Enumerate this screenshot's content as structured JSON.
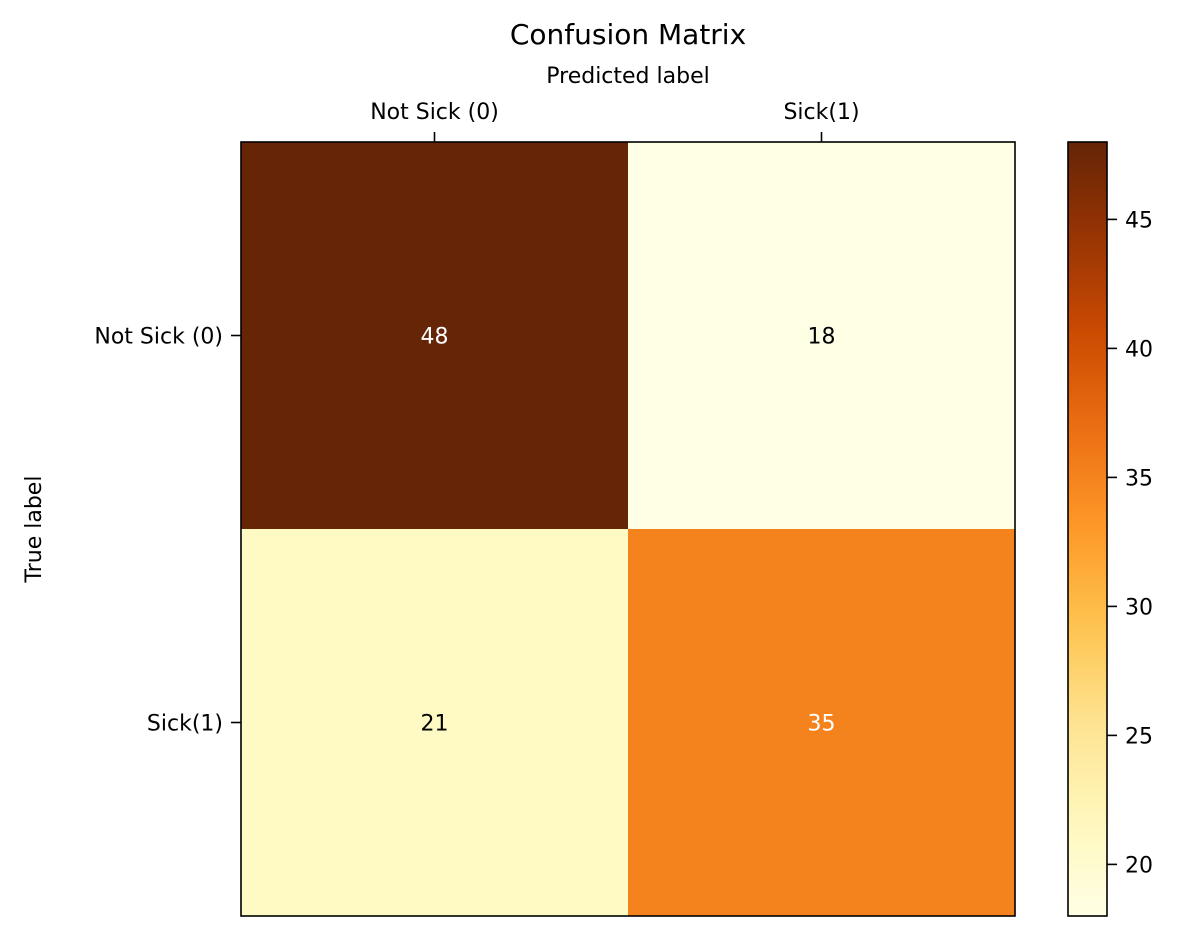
{
  "chart_data": {
    "type": "heatmap",
    "title": "Confusion Matrix",
    "xlabel": "Predicted label",
    "ylabel": "True label",
    "x_categories": [
      "Not Sick (0)",
      "Sick(1)"
    ],
    "y_categories": [
      "Not Sick (0)",
      "Sick(1)"
    ],
    "values": [
      [
        48,
        18
      ],
      [
        21,
        35
      ]
    ],
    "colormap": "YlOrBr",
    "colorbar": {
      "min": 18,
      "max": 48,
      "ticks": [
        20,
        25,
        30,
        35,
        40,
        45
      ]
    },
    "colors": {
      "text_light": "#ffffff",
      "text_dark": "#000000"
    }
  }
}
